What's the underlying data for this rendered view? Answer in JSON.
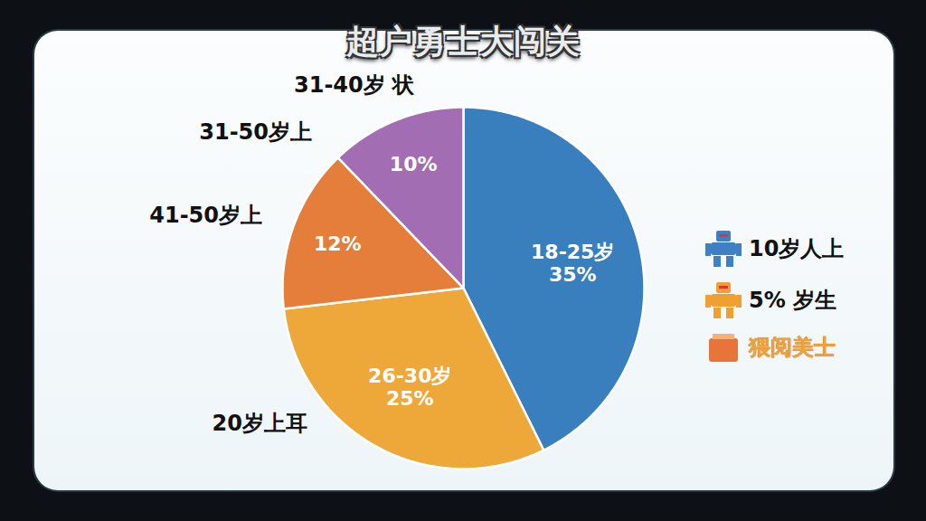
{
  "chart_data": {
    "type": "pie",
    "title": "超户勇士大闯关",
    "categories": [
      "18-25岁",
      "26-30岁",
      null,
      null
    ],
    "values": [
      35,
      25,
      12,
      10
    ],
    "value_labels": [
      "35%",
      "25%",
      "12%",
      "10%"
    ],
    "colors": [
      "#3a7fbd",
      "#eea83a",
      "#e47e3a",
      "#a26db2"
    ],
    "data_labels": true,
    "annotations": [
      "31-40岁 状",
      "31-50岁上",
      "41-50岁上",
      "20岁上耳"
    ],
    "legend_entries": [
      {
        "label": "10岁人上",
        "color": "#3f7fc4"
      },
      {
        "label": "5% 岁生",
        "color": "#f0a030"
      },
      {
        "label": "猥阅美士",
        "color": "#e8743a"
      }
    ],
    "legend": "right"
  }
}
